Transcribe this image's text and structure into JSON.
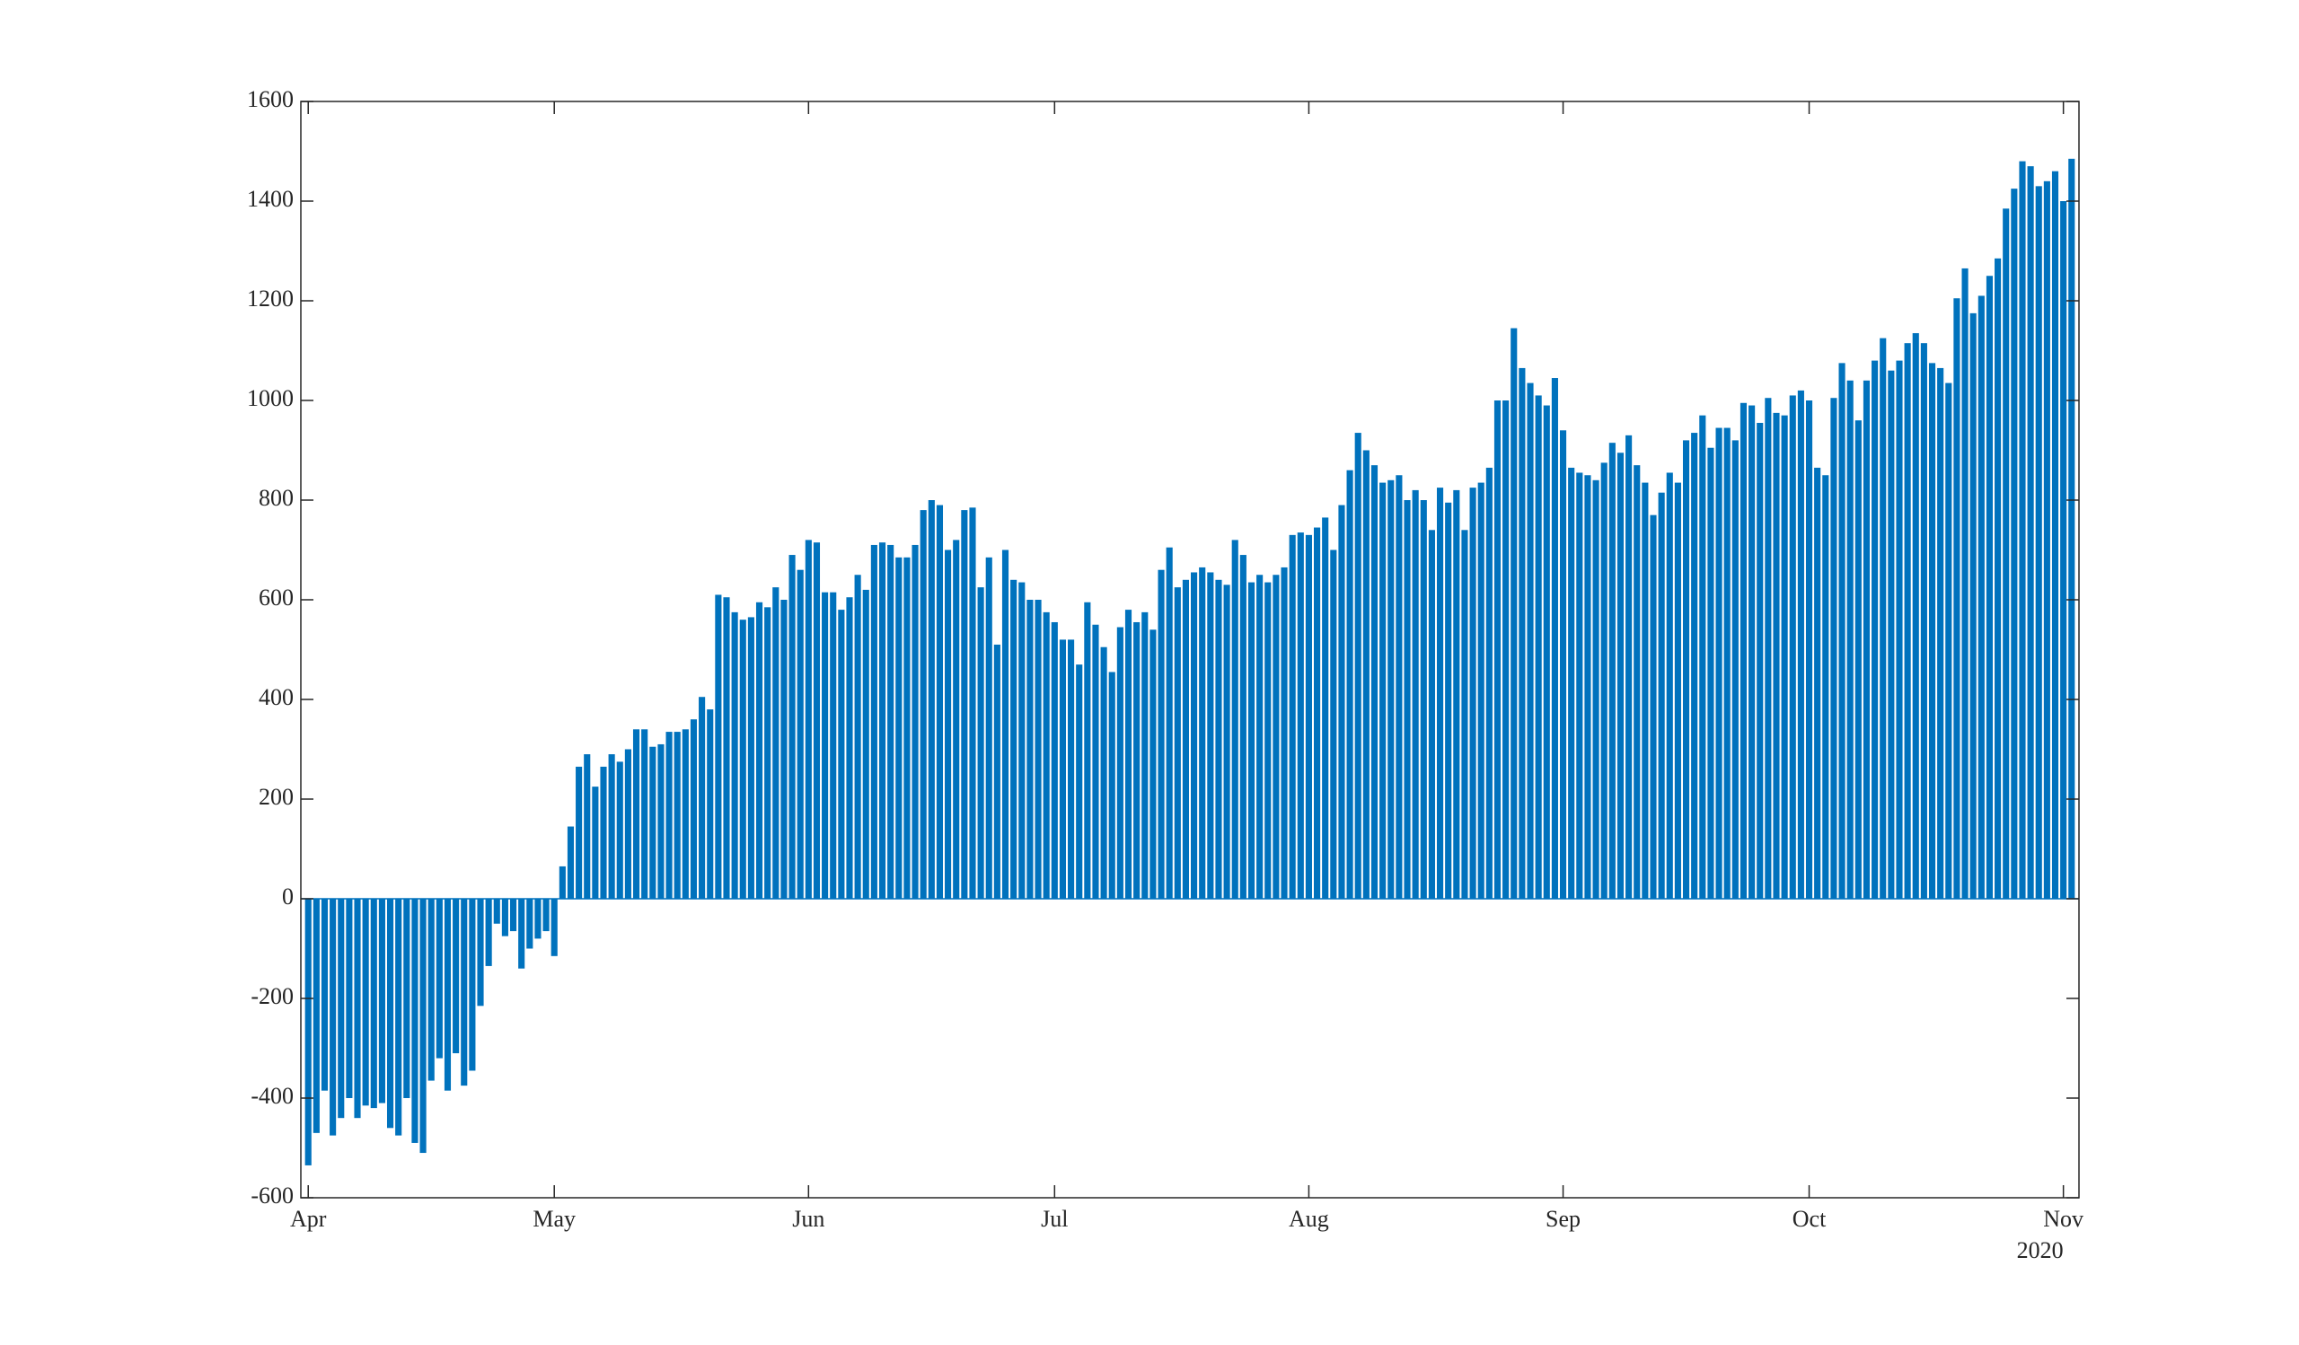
{
  "chart_data": {
    "type": "bar",
    "color": "#0072bd",
    "secondary_x_label": "2020",
    "categories": [
      "Apr",
      null,
      null,
      null,
      null,
      null,
      null,
      null,
      null,
      null,
      null,
      null,
      null,
      null,
      null,
      null,
      null,
      null,
      null,
      null,
      null,
      null,
      null,
      null,
      null,
      null,
      null,
      null,
      null,
      null,
      "May",
      null,
      null,
      null,
      null,
      null,
      null,
      null,
      null,
      null,
      null,
      null,
      null,
      null,
      null,
      null,
      null,
      null,
      null,
      null,
      null,
      null,
      null,
      null,
      null,
      null,
      null,
      null,
      null,
      null,
      null,
      "Jun",
      null,
      null,
      null,
      null,
      null,
      null,
      null,
      null,
      null,
      null,
      null,
      null,
      null,
      null,
      null,
      null,
      null,
      null,
      null,
      null,
      null,
      null,
      null,
      null,
      null,
      null,
      null,
      null,
      null,
      "Jul",
      null,
      null,
      null,
      null,
      null,
      null,
      null,
      null,
      null,
      null,
      null,
      null,
      null,
      null,
      null,
      null,
      null,
      null,
      null,
      null,
      null,
      null,
      null,
      null,
      null,
      null,
      null,
      null,
      null,
      null,
      "Aug",
      null,
      null,
      null,
      null,
      null,
      null,
      null,
      null,
      null,
      null,
      null,
      null,
      null,
      null,
      null,
      null,
      null,
      null,
      null,
      null,
      null,
      null,
      null,
      null,
      null,
      null,
      null,
      null,
      null,
      null,
      "Sep",
      null,
      null,
      null,
      null,
      null,
      null,
      null,
      null,
      null,
      null,
      null,
      null,
      null,
      null,
      null,
      null,
      null,
      null,
      null,
      null,
      null,
      null,
      null,
      null,
      null,
      null,
      null,
      null,
      null,
      "Oct",
      null,
      null,
      null,
      null,
      null,
      null,
      null,
      null,
      null,
      null,
      null,
      null,
      null,
      null,
      null,
      null,
      null,
      null,
      null,
      null,
      null,
      null,
      null,
      null,
      null,
      null,
      null,
      null,
      null,
      null,
      "Nov",
      null
    ],
    "values": [
      -535,
      -470,
      -385,
      -475,
      -440,
      -400,
      -440,
      -415,
      -420,
      -410,
      -460,
      -475,
      -400,
      -490,
      -510,
      -365,
      -320,
      -385,
      -310,
      -375,
      -345,
      -215,
      -135,
      -50,
      -75,
      -65,
      -140,
      -100,
      -80,
      -65,
      -115,
      65,
      145,
      265,
      290,
      225,
      265,
      290,
      275,
      300,
      340,
      340,
      305,
      310,
      335,
      335,
      340,
      360,
      405,
      380,
      610,
      605,
      575,
      560,
      565,
      595,
      585,
      625,
      600,
      690,
      660,
      720,
      715,
      615,
      615,
      580,
      605,
      650,
      620,
      710,
      715,
      710,
      685,
      685,
      710,
      780,
      800,
      790,
      700,
      720,
      780,
      785,
      625,
      685,
      510,
      700,
      640,
      635,
      600,
      600,
      575,
      555,
      520,
      520,
      470,
      595,
      550,
      505,
      455,
      545,
      580,
      555,
      575,
      540,
      660,
      705,
      625,
      640,
      655,
      665,
      655,
      640,
      630,
      720,
      690,
      635,
      650,
      635,
      650,
      665,
      730,
      735,
      730,
      745,
      765,
      700,
      790,
      860,
      935,
      900,
      870,
      835,
      840,
      850,
      800,
      820,
      800,
      740,
      825,
      795,
      820,
      740,
      825,
      835,
      865,
      1000,
      1000,
      1145,
      1065,
      1035,
      1010,
      990,
      1045,
      940,
      865,
      855,
      850,
      840,
      875,
      915,
      895,
      930,
      870,
      835,
      770,
      815,
      855,
      835,
      920,
      935,
      970,
      905,
      945,
      945,
      920,
      995,
      990,
      955,
      1005,
      975,
      970,
      1010,
      1020,
      1000,
      865,
      850,
      1005,
      1075,
      1040,
      960,
      1040,
      1080,
      1125,
      1060,
      1080,
      1115,
      1135,
      1115,
      1075,
      1065,
      1035,
      1205,
      1265,
      1175,
      1210,
      1250,
      1285,
      1385,
      1425,
      1480,
      1470,
      1430,
      1440,
      1460,
      1400,
      1485
    ],
    "ylim": [
      -600,
      1600
    ],
    "yticks": [
      -600,
      -400,
      -200,
      0,
      200,
      400,
      600,
      800,
      1000,
      1200,
      1400,
      1600
    ]
  }
}
